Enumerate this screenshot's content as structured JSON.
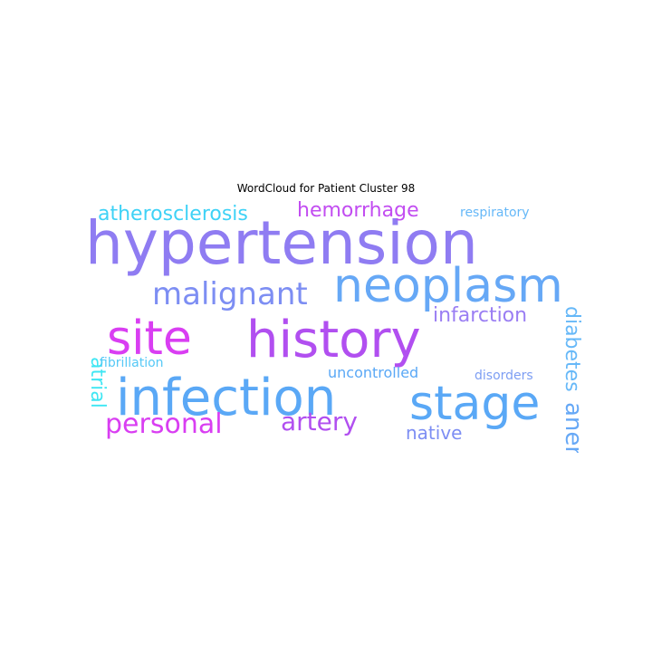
{
  "title": "WordCloud for Patient Cluster 98",
  "colors": {
    "magenta": "#d93ef2",
    "violet": "#b14ff0",
    "lavender": "#8f7cf2",
    "periwinkle": "#7d8ef3",
    "sky": "#5aa8f6",
    "light_blue": "#66b8f8",
    "cyan": "#3fd2f6",
    "aqua": "#3ee6f3"
  },
  "words": [
    {
      "text": "hypertension",
      "color": "#8f7cf2"
    },
    {
      "text": "history",
      "color": "#b14ff0"
    },
    {
      "text": "infection",
      "color": "#5aa8f6"
    },
    {
      "text": "neoplasm",
      "color": "#66a8f6"
    },
    {
      "text": "site",
      "color": "#d93ef2"
    },
    {
      "text": "stage",
      "color": "#5aa8f6"
    },
    {
      "text": "malignant",
      "color": "#7d8ef3"
    },
    {
      "text": "personal",
      "color": "#d93ef2"
    },
    {
      "text": "artery",
      "color": "#b14ff0"
    },
    {
      "text": "atherosclerosis",
      "color": "#3fd2f6"
    },
    {
      "text": "hemorrhage",
      "color": "#c24df1"
    },
    {
      "text": "infarction",
      "color": "#9a7ef3"
    },
    {
      "text": "anemia",
      "color": "#66a8f6"
    },
    {
      "text": "diabetes",
      "color": "#66b8f8"
    },
    {
      "text": "native",
      "color": "#7d8ef3"
    },
    {
      "text": "atrial",
      "color": "#3ee6f3"
    },
    {
      "text": "respiratory",
      "color": "#66b8f8"
    },
    {
      "text": "uncontrolled",
      "color": "#5aa8f6"
    },
    {
      "text": "disorders",
      "color": "#7d9ef3"
    },
    {
      "text": "fibrillation",
      "color": "#55c8f6"
    }
  ]
}
